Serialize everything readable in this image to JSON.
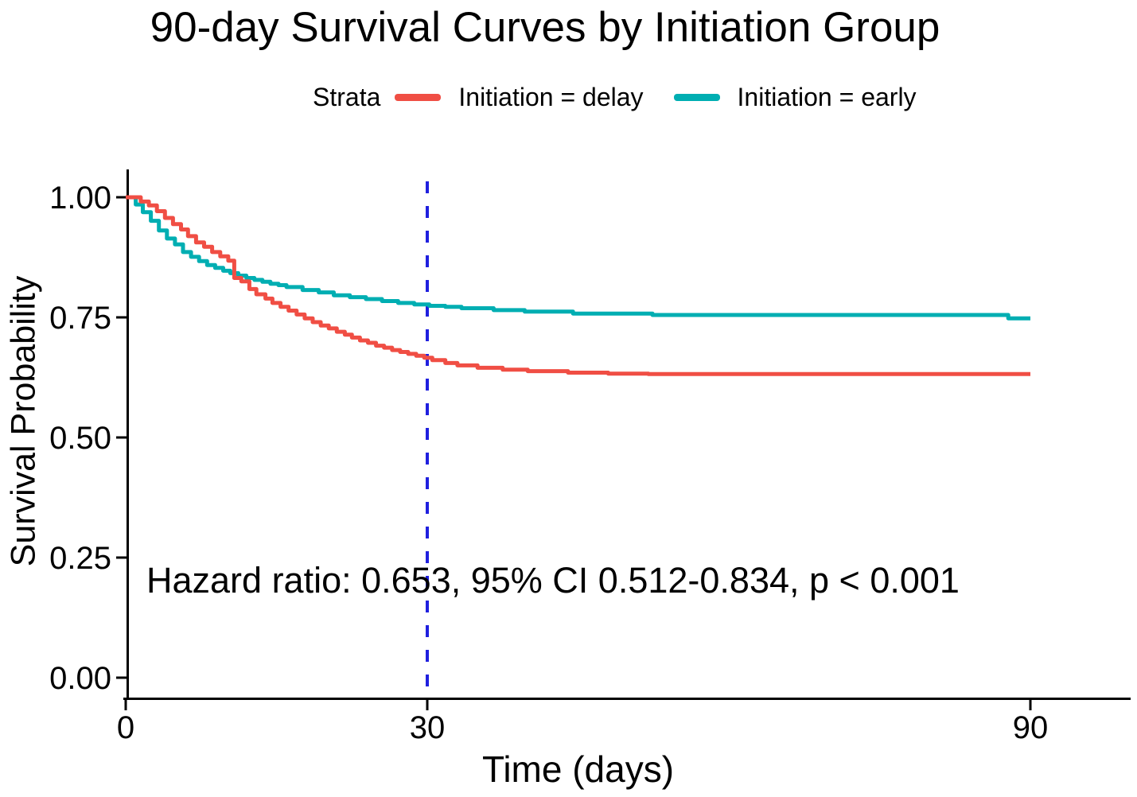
{
  "title": "90-day Survival Curves by Initiation Group",
  "legend": {
    "title": "Strata",
    "items": [
      {
        "label": "Initiation = delay",
        "color": "#F04E44"
      },
      {
        "label": "Initiation = early",
        "color": "#00AEB2"
      }
    ]
  },
  "x_axis": {
    "label": "Time (days)",
    "tick_labels": [
      "0",
      "30",
      "90"
    ],
    "tick_values": [
      0,
      30,
      90
    ],
    "range": [
      0,
      90
    ]
  },
  "y_axis": {
    "label": "Survival Probability",
    "tick_labels": [
      "1.00",
      "0.75",
      "0.50",
      "0.25",
      "0.00"
    ],
    "tick_values": [
      1,
      0.75,
      0.5,
      0.25,
      0
    ],
    "range": [
      0,
      1
    ]
  },
  "annotation": {
    "text": "Hazard ratio: 0.653, 95% CI 0.512-0.834, p < 0.001"
  },
  "reference_line": {
    "x": 30,
    "color": "#2020DF",
    "style": "dashed"
  },
  "chart_data": {
    "type": "line",
    "subtype": "kaplan-meier-step",
    "title": "90-day Survival Curves by Initiation Group",
    "xlabel": "Time (days)",
    "ylabel": "Survival Probability",
    "xlim": [
      0,
      90
    ],
    "ylim": [
      0,
      1
    ],
    "x_ticks": [
      0,
      30,
      90
    ],
    "y_ticks": [
      0,
      0.25,
      0.5,
      0.75,
      1.0
    ],
    "grid": false,
    "legend_position": "top",
    "legend_title": "Strata",
    "reference_line_x": 30,
    "annotation": "Hazard ratio: 0.653, 95% CI 0.512-0.834, p < 0.001",
    "series": [
      {
        "name": "Initiation = delay",
        "color": "#F04E44",
        "points": [
          [
            0,
            1.0
          ],
          [
            1.5,
            0.991
          ],
          [
            2.3,
            0.983
          ],
          [
            3.1,
            0.971
          ],
          [
            3.9,
            0.957
          ],
          [
            4.7,
            0.944
          ],
          [
            5.5,
            0.933
          ],
          [
            6.2,
            0.919
          ],
          [
            7,
            0.906
          ],
          [
            7.8,
            0.897
          ],
          [
            8.6,
            0.886
          ],
          [
            9.4,
            0.877
          ],
          [
            10.2,
            0.868
          ],
          [
            10.8,
            0.832
          ],
          [
            11.5,
            0.825
          ],
          [
            12.3,
            0.809
          ],
          [
            13,
            0.798
          ],
          [
            13.9,
            0.789
          ],
          [
            14.6,
            0.78
          ],
          [
            15.4,
            0.772
          ],
          [
            16.2,
            0.764
          ],
          [
            17,
            0.756
          ],
          [
            17.8,
            0.748
          ],
          [
            18.6,
            0.74
          ],
          [
            19.4,
            0.733
          ],
          [
            20.2,
            0.727
          ],
          [
            21,
            0.72
          ],
          [
            21.8,
            0.714
          ],
          [
            22.5,
            0.708
          ],
          [
            23.3,
            0.702
          ],
          [
            24.1,
            0.697
          ],
          [
            24.9,
            0.691
          ],
          [
            25.7,
            0.687
          ],
          [
            26.5,
            0.682
          ],
          [
            27.3,
            0.678
          ],
          [
            28.1,
            0.674
          ],
          [
            28.9,
            0.67
          ],
          [
            29.7,
            0.666
          ],
          [
            30.5,
            0.661
          ],
          [
            31.8,
            0.655
          ],
          [
            33,
            0.65
          ],
          [
            35,
            0.645
          ],
          [
            37.5,
            0.641
          ],
          [
            40,
            0.638
          ],
          [
            44,
            0.635
          ],
          [
            48,
            0.633
          ],
          [
            52,
            0.632
          ],
          [
            90,
            0.632
          ]
        ]
      },
      {
        "name": "Initiation = early",
        "color": "#00AEB2",
        "points": [
          [
            0,
            1.0
          ],
          [
            1,
            0.985
          ],
          [
            1.7,
            0.969
          ],
          [
            2.5,
            0.951
          ],
          [
            3.3,
            0.931
          ],
          [
            4.1,
            0.914
          ],
          [
            4.9,
            0.902
          ],
          [
            5.7,
            0.886
          ],
          [
            6.5,
            0.876
          ],
          [
            7.3,
            0.867
          ],
          [
            8.1,
            0.859
          ],
          [
            8.9,
            0.853
          ],
          [
            9.7,
            0.847
          ],
          [
            10.4,
            0.842
          ],
          [
            11.2,
            0.837
          ],
          [
            12,
            0.832
          ],
          [
            12.8,
            0.828
          ],
          [
            13.6,
            0.824
          ],
          [
            14.4,
            0.82
          ],
          [
            15.2,
            0.817
          ],
          [
            16,
            0.813
          ],
          [
            17.6,
            0.807
          ],
          [
            19.2,
            0.802
          ],
          [
            20.7,
            0.796
          ],
          [
            22.3,
            0.792
          ],
          [
            23.9,
            0.788
          ],
          [
            25.5,
            0.784
          ],
          [
            27.1,
            0.78
          ],
          [
            28.7,
            0.777
          ],
          [
            30.2,
            0.774
          ],
          [
            31.8,
            0.772
          ],
          [
            33.4,
            0.769
          ],
          [
            36.6,
            0.765
          ],
          [
            39.7,
            0.762
          ],
          [
            44.5,
            0.758
          ],
          [
            52.4,
            0.755
          ],
          [
            87.8,
            0.748
          ],
          [
            90,
            0.748
          ]
        ]
      }
    ]
  }
}
